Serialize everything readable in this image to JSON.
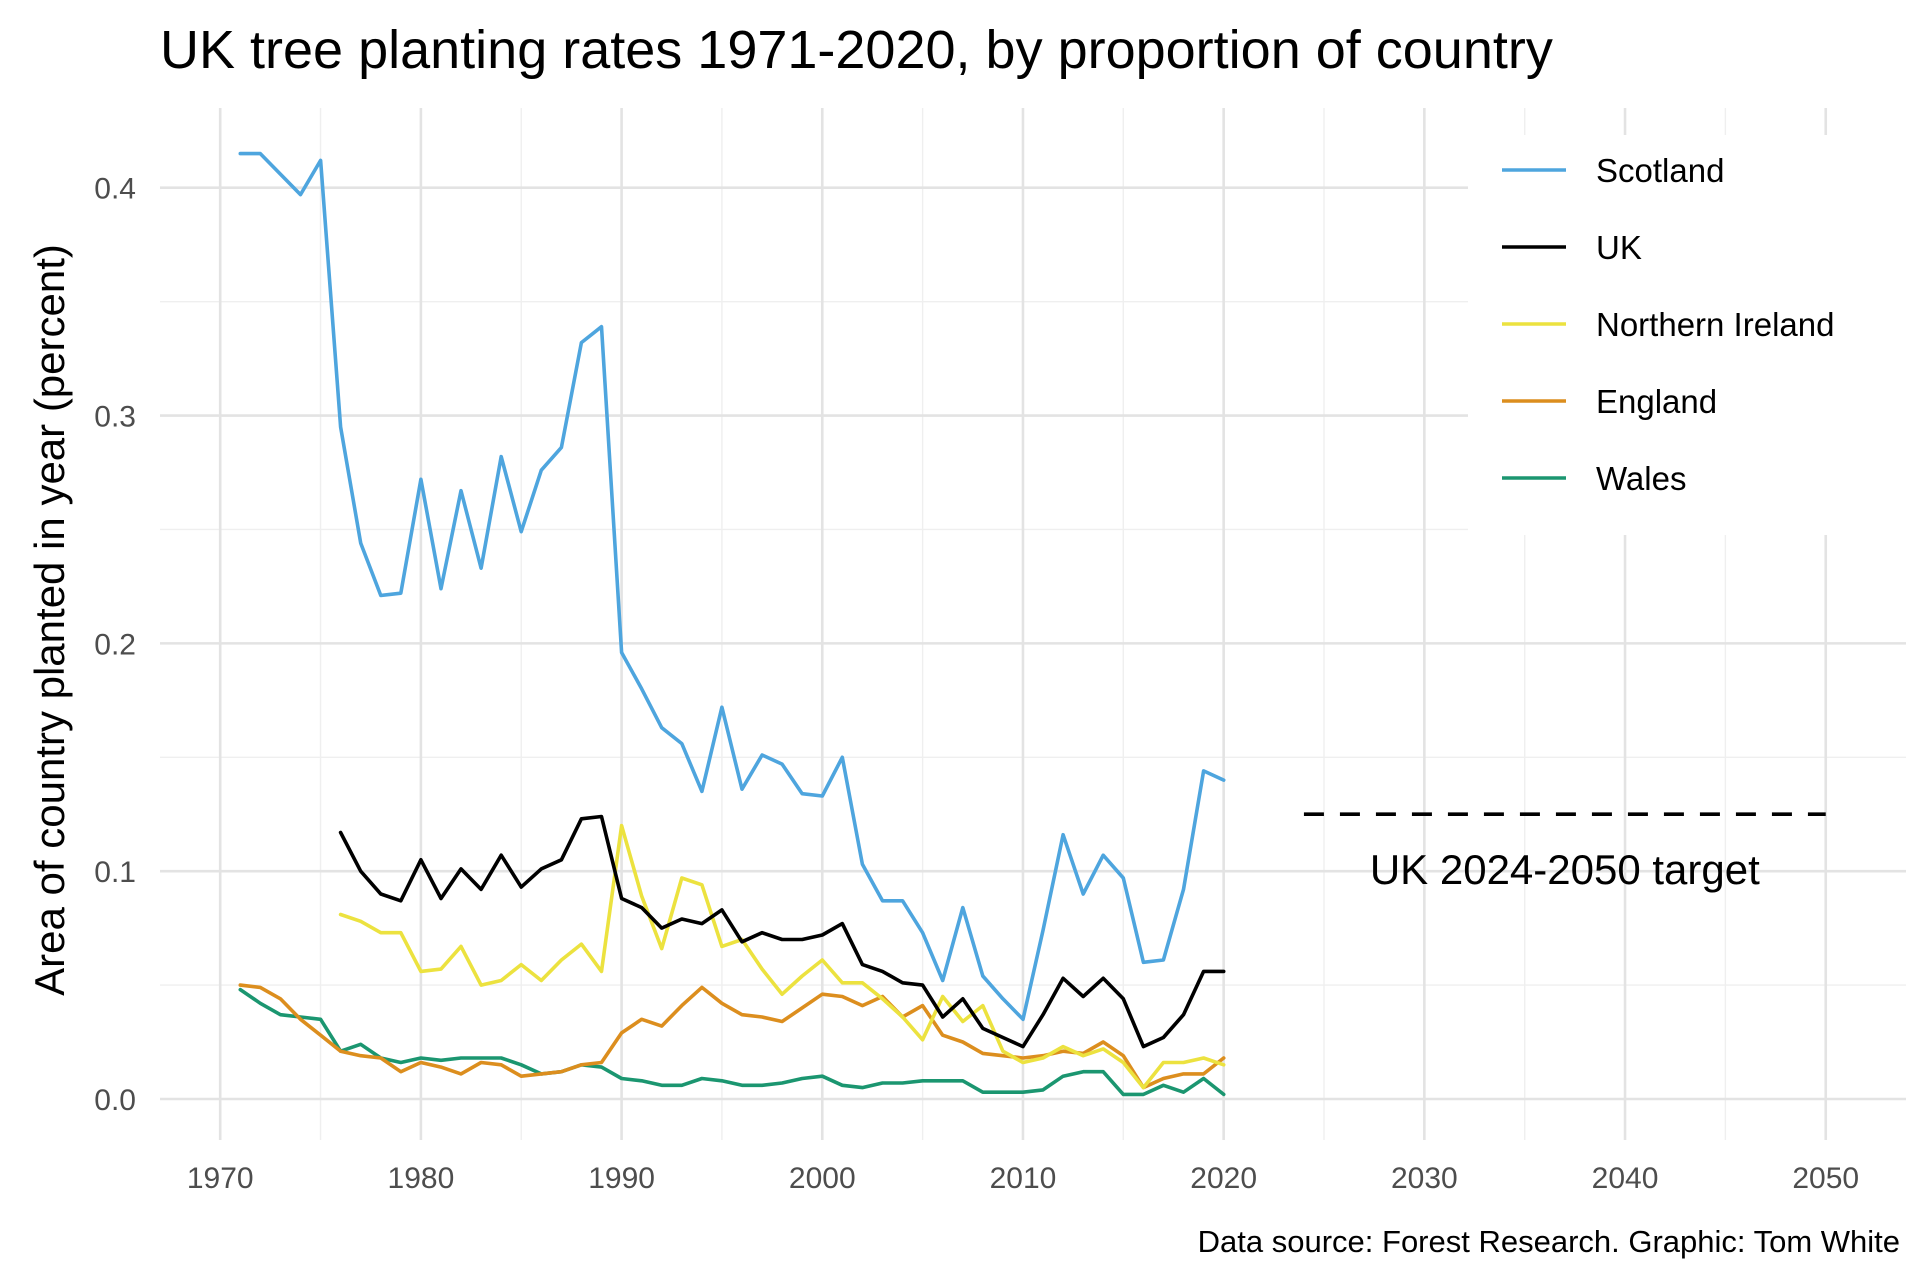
{
  "chart_data": {
    "type": "line",
    "title": "UK tree planting rates 1971-2020, by proportion of country",
    "xlabel": "",
    "ylabel": "Area of country planted in year (percent)",
    "caption": "Data source: Forest Research. Graphic: Tom White",
    "xlim": [
      1967,
      2054
    ],
    "ylim": [
      -0.018,
      0.435
    ],
    "x_ticks": [
      1970,
      1980,
      1990,
      2000,
      2010,
      2020,
      2030,
      2040,
      2050
    ],
    "y_ticks": [
      0.0,
      0.1,
      0.2,
      0.3,
      0.4
    ],
    "y_tick_labels": [
      "0.0",
      "0.1",
      "0.2",
      "0.3",
      "0.4"
    ],
    "grid": true,
    "legend_position": "top-right",
    "series": [
      {
        "name": "Scotland",
        "color": "#4ea5de",
        "x": [
          1971,
          1972,
          1973,
          1974,
          1975,
          1976,
          1977,
          1978,
          1979,
          1980,
          1981,
          1982,
          1983,
          1984,
          1985,
          1986,
          1987,
          1988,
          1989,
          1990,
          1991,
          1992,
          1993,
          1994,
          1995,
          1996,
          1997,
          1998,
          1999,
          2000,
          2001,
          2002,
          2003,
          2004,
          2005,
          2006,
          2007,
          2008,
          2009,
          2010,
          2011,
          2012,
          2013,
          2014,
          2015,
          2016,
          2017,
          2018,
          2019,
          2020
        ],
        "values": [
          0.415,
          0.415,
          0.406,
          0.397,
          0.412,
          0.295,
          0.244,
          0.221,
          0.222,
          0.272,
          0.224,
          0.267,
          0.233,
          0.282,
          0.249,
          0.276,
          0.286,
          0.332,
          0.339,
          0.196,
          0.18,
          0.163,
          0.156,
          0.135,
          0.172,
          0.136,
          0.151,
          0.147,
          0.134,
          0.133,
          0.15,
          0.103,
          0.087,
          0.087,
          0.073,
          0.052,
          0.084,
          0.054,
          0.044,
          0.035,
          0.074,
          0.116,
          0.09,
          0.107,
          0.097,
          0.06,
          0.061,
          0.092,
          0.144,
          0.14
        ]
      },
      {
        "name": "UK",
        "color": "#000000",
        "x": [
          1976,
          1977,
          1978,
          1979,
          1980,
          1981,
          1982,
          1983,
          1984,
          1985,
          1986,
          1987,
          1988,
          1989,
          1990,
          1991,
          1992,
          1993,
          1994,
          1995,
          1996,
          1997,
          1998,
          1999,
          2000,
          2001,
          2002,
          2003,
          2004,
          2005,
          2006,
          2007,
          2008,
          2009,
          2010,
          2011,
          2012,
          2013,
          2014,
          2015,
          2016,
          2017,
          2018,
          2019,
          2020
        ],
        "values": [
          0.117,
          0.1,
          0.09,
          0.087,
          0.105,
          0.088,
          0.101,
          0.092,
          0.107,
          0.093,
          0.101,
          0.105,
          0.123,
          0.124,
          0.088,
          0.084,
          0.075,
          0.079,
          0.077,
          0.083,
          0.069,
          0.073,
          0.07,
          0.07,
          0.072,
          0.077,
          0.059,
          0.056,
          0.051,
          0.05,
          0.036,
          0.044,
          0.031,
          0.027,
          0.023,
          0.037,
          0.053,
          0.045,
          0.053,
          0.044,
          0.023,
          0.027,
          0.037,
          0.056,
          0.056
        ]
      },
      {
        "name": "Northern Ireland",
        "color": "#ece23f",
        "x": [
          1976,
          1977,
          1978,
          1979,
          1980,
          1981,
          1982,
          1983,
          1984,
          1985,
          1986,
          1987,
          1988,
          1989,
          1990,
          1991,
          1992,
          1993,
          1994,
          1995,
          1996,
          1997,
          1998,
          1999,
          2000,
          2001,
          2002,
          2003,
          2004,
          2005,
          2006,
          2007,
          2008,
          2009,
          2010,
          2011,
          2012,
          2013,
          2014,
          2015,
          2016,
          2017,
          2018,
          2019,
          2020
        ],
        "values": [
          0.081,
          0.078,
          0.073,
          0.073,
          0.056,
          0.057,
          0.067,
          0.05,
          0.052,
          0.059,
          0.052,
          0.061,
          0.068,
          0.056,
          0.12,
          0.089,
          0.066,
          0.097,
          0.094,
          0.067,
          0.07,
          0.057,
          0.046,
          0.054,
          0.061,
          0.051,
          0.051,
          0.044,
          0.036,
          0.026,
          0.045,
          0.034,
          0.041,
          0.021,
          0.016,
          0.018,
          0.023,
          0.019,
          0.022,
          0.016,
          0.005,
          0.016,
          0.016,
          0.018,
          0.015
        ]
      },
      {
        "name": "England",
        "color": "#dc8e1e",
        "x": [
          1971,
          1972,
          1973,
          1974,
          1975,
          1976,
          1977,
          1978,
          1979,
          1980,
          1981,
          1982,
          1983,
          1984,
          1985,
          1986,
          1987,
          1988,
          1989,
          1990,
          1991,
          1992,
          1993,
          1994,
          1995,
          1996,
          1997,
          1998,
          1999,
          2000,
          2001,
          2002,
          2003,
          2004,
          2005,
          2006,
          2007,
          2008,
          2009,
          2010,
          2011,
          2012,
          2013,
          2014,
          2015,
          2016,
          2017,
          2018,
          2019,
          2020
        ],
        "values": [
          0.05,
          0.049,
          0.044,
          0.035,
          0.028,
          0.021,
          0.019,
          0.018,
          0.012,
          0.016,
          0.014,
          0.011,
          0.016,
          0.015,
          0.01,
          0.011,
          0.012,
          0.015,
          0.016,
          0.029,
          0.035,
          0.032,
          0.041,
          0.049,
          0.042,
          0.037,
          0.036,
          0.034,
          0.04,
          0.046,
          0.045,
          0.041,
          0.045,
          0.036,
          0.041,
          0.028,
          0.025,
          0.02,
          0.019,
          0.018,
          0.019,
          0.021,
          0.02,
          0.025,
          0.019,
          0.005,
          0.009,
          0.011,
          0.011,
          0.018
        ]
      },
      {
        "name": "Wales",
        "color": "#1b9670",
        "x": [
          1971,
          1972,
          1973,
          1974,
          1975,
          1976,
          1977,
          1978,
          1979,
          1980,
          1981,
          1982,
          1983,
          1984,
          1985,
          1986,
          1987,
          1988,
          1989,
          1990,
          1991,
          1992,
          1993,
          1994,
          1995,
          1996,
          1997,
          1998,
          1999,
          2000,
          2001,
          2002,
          2003,
          2004,
          2005,
          2006,
          2007,
          2008,
          2009,
          2010,
          2011,
          2012,
          2013,
          2014,
          2015,
          2016,
          2017,
          2018,
          2019,
          2020
        ],
        "values": [
          0.048,
          0.042,
          0.037,
          0.036,
          0.035,
          0.021,
          0.024,
          0.018,
          0.016,
          0.018,
          0.017,
          0.018,
          0.018,
          0.018,
          0.015,
          0.011,
          0.012,
          0.015,
          0.014,
          0.009,
          0.008,
          0.006,
          0.006,
          0.009,
          0.008,
          0.006,
          0.006,
          0.007,
          0.009,
          0.01,
          0.006,
          0.005,
          0.007,
          0.007,
          0.008,
          0.008,
          0.008,
          0.003,
          0.003,
          0.003,
          0.004,
          0.01,
          0.012,
          0.012,
          0.002,
          0.002,
          0.006,
          0.003,
          0.009,
          0.002
        ]
      }
    ],
    "reference_line": {
      "label": "UK 2024-2050 target",
      "x_start": 2024,
      "x_end": 2050,
      "value": 0.125,
      "style": "dashed",
      "color": "#000000"
    }
  }
}
